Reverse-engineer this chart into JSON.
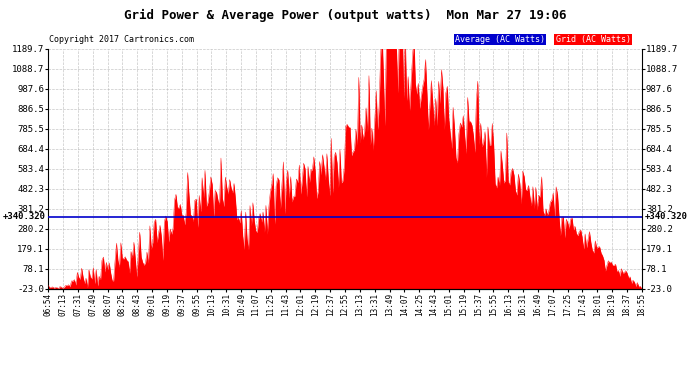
{
  "title": "Grid Power & Average Power (output watts)  Mon Mar 27 19:06",
  "copyright": "Copyright 2017 Cartronics.com",
  "ymin": -23.0,
  "ymax": 1189.7,
  "yticks": [
    -23.0,
    78.1,
    179.1,
    280.2,
    381.2,
    482.3,
    583.4,
    684.4,
    785.5,
    886.5,
    987.6,
    1088.7,
    1189.7
  ],
  "ytick_labels_left": [
    "-23.0",
    "78.1",
    "179.1",
    "280.2",
    "381.2",
    "482.3",
    "583.4",
    "684.4",
    "785.5",
    "886.5",
    "987.6",
    "1088.7",
    "1189.7"
  ],
  "ytick_labels_right": [
    "-23.0",
    "78.1",
    "179.1",
    "280.2",
    "381.2",
    "482.3",
    "583.4",
    "684.4",
    "785.5",
    "886.5",
    "987.6",
    "1088.7",
    "1189.7"
  ],
  "average_value": 340.32,
  "average_label": "+340.320",
  "background_color": "#ffffff",
  "grid_color": "#b0b0b0",
  "fill_color": "#ff0000",
  "line_color": "#ff0000",
  "average_line_color": "#0000cc",
  "legend_avg_bg": "#0000cc",
  "legend_grid_bg": "#ff0000",
  "legend_avg_text": "Average (AC Watts)",
  "legend_grid_text": "Grid (AC Watts)",
  "xtick_labels": [
    "06:54",
    "07:13",
    "07:31",
    "07:49",
    "08:07",
    "08:25",
    "08:43",
    "09:01",
    "09:19",
    "09:37",
    "09:55",
    "10:13",
    "10:31",
    "10:49",
    "11:07",
    "11:25",
    "11:43",
    "12:01",
    "12:19",
    "12:37",
    "12:55",
    "13:13",
    "13:31",
    "13:49",
    "14:07",
    "14:25",
    "14:43",
    "15:01",
    "15:19",
    "15:37",
    "15:55",
    "16:13",
    "16:31",
    "16:49",
    "17:07",
    "17:25",
    "17:43",
    "18:01",
    "18:19",
    "18:37",
    "18:55"
  ]
}
